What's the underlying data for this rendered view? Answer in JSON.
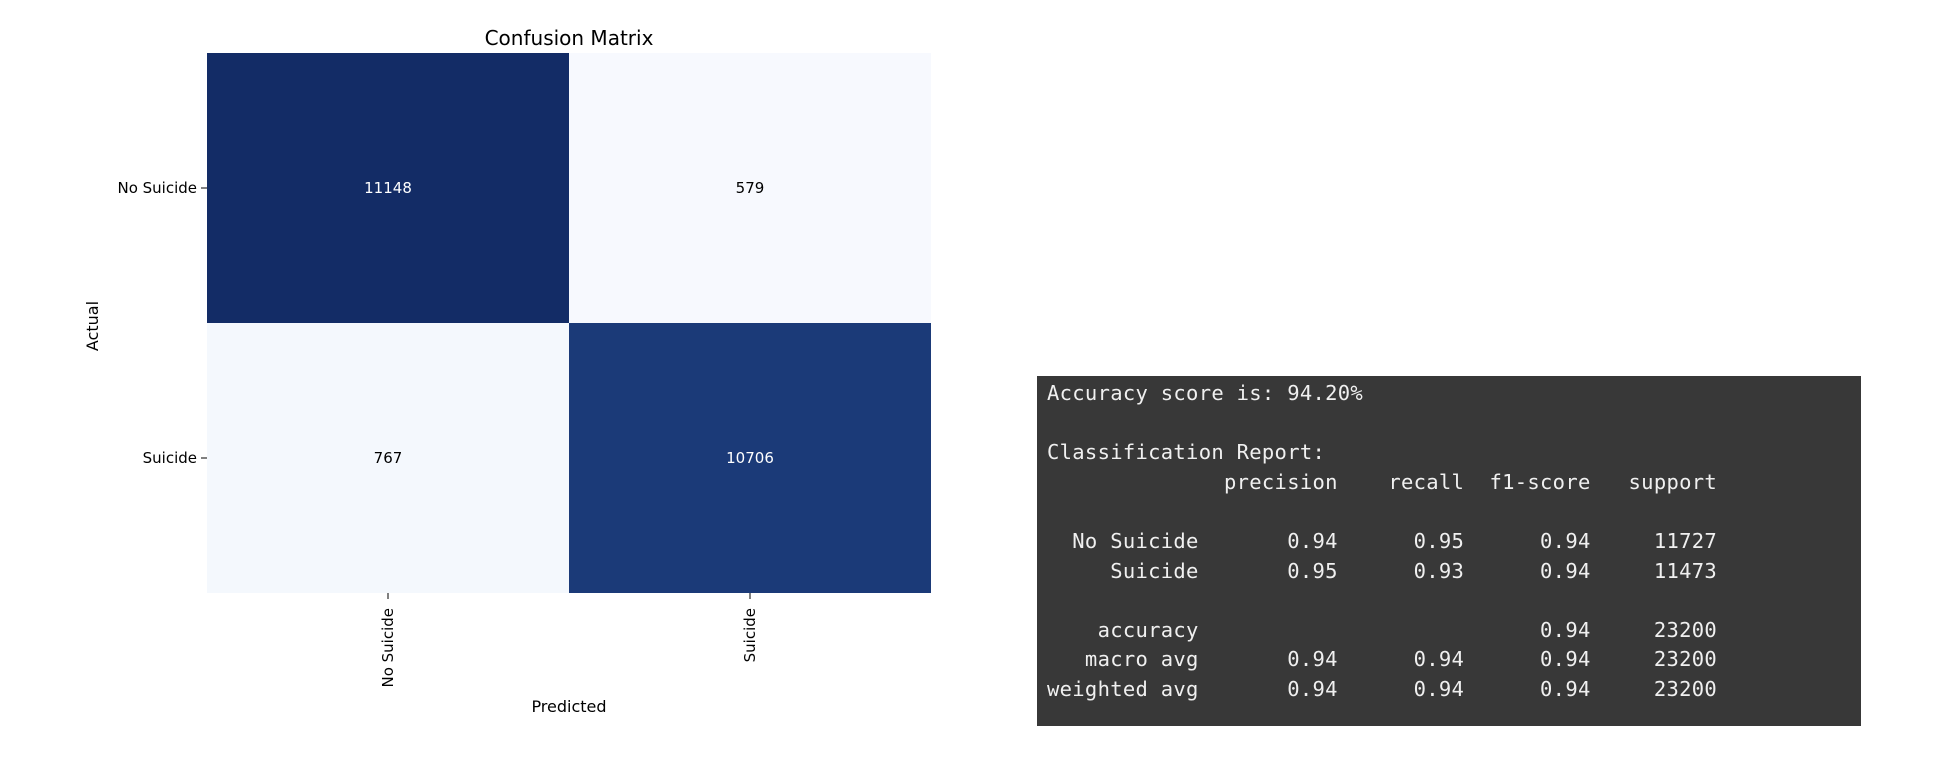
{
  "chart_data": {
    "type": "heatmap",
    "title": "Confusion Matrix",
    "xlabel": "Predicted",
    "ylabel": "Actual",
    "x_categories": [
      "No Suicide",
      "Suicide"
    ],
    "y_categories": [
      "No Suicide",
      "Suicide"
    ],
    "values": [
      [
        11148,
        579
      ],
      [
        767,
        10706
      ]
    ],
    "colormap": "Blues",
    "colorbar": false,
    "colors": {
      "high_cell": "#132c66",
      "high_cell_2": "#1b3a78",
      "low_cell": "#f7f9fe",
      "low_cell_2": "#f4f8fd",
      "text_on_dark": "#ffffff",
      "text_on_light": "#000000"
    }
  },
  "report": {
    "background": "#383838",
    "text_color": "#f0f0f0",
    "lines": [
      "Accuracy score is: 94.20%",
      "",
      "Classification Report:",
      "              precision    recall  f1-score   support",
      "",
      "  No Suicide       0.94      0.95      0.94     11727",
      "     Suicide       0.95      0.93      0.94     11473",
      "",
      "    accuracy                           0.94     23200",
      "   macro avg       0.94      0.94      0.94     23200",
      "weighted avg       0.94      0.94      0.94     23200"
    ]
  }
}
